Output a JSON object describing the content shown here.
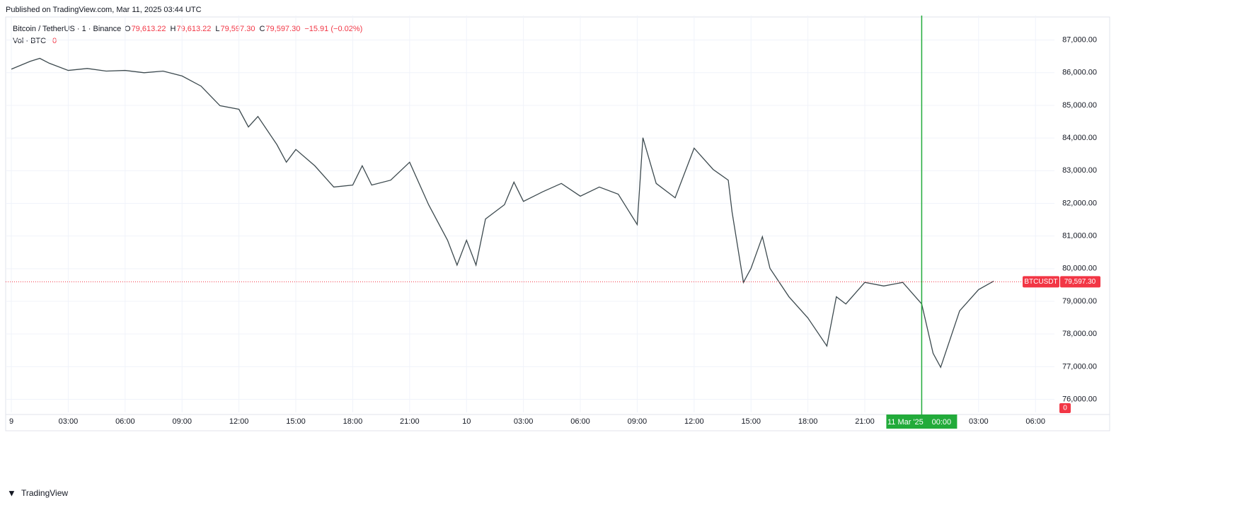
{
  "chart_data": {
    "type": "line",
    "published": "Published on TradingView.com, Mar 11, 2025 03:44 UTC",
    "symbol": "Bitcoin / TetherUS · 1 · Binance",
    "ohlc": [
      "O",
      "79,613.22",
      "H",
      "79,613.22",
      "L",
      "79,597.30",
      "C",
      "79,597.30",
      "−15.91 (−0.02%)"
    ],
    "volume_legend": "Vol · BTC",
    "volume_value": "0",
    "brand": "TradingView",
    "x": [
      0,
      1,
      1.5,
      2,
      3,
      4,
      5,
      6,
      7,
      8,
      9,
      10,
      11,
      12,
      12.5,
      13,
      14,
      14.5,
      15,
      16,
      17,
      18,
      18.5,
      19,
      20,
      21,
      22,
      23,
      23.5,
      24,
      24.5,
      25,
      26,
      26.5,
      27,
      28,
      29,
      30,
      31,
      32,
      33,
      33.3,
      34,
      35,
      36,
      37,
      37.8,
      38,
      38.6,
      39,
      39.6,
      40,
      41,
      42,
      43,
      43.5,
      44,
      45,
      46,
      47,
      48,
      48.6,
      49,
      50,
      51,
      51.8
    ],
    "series": [
      {
        "color": "#3d4a4f",
        "values": [
          86110,
          86350,
          86440,
          86290,
          86070,
          86130,
          86050,
          86070,
          86000,
          86050,
          85900,
          85590,
          84990,
          84880,
          84340,
          84660,
          83800,
          83260,
          83650,
          83150,
          82500,
          82560,
          83150,
          82560,
          82710,
          83260,
          81960,
          80870,
          80110,
          80870,
          80110,
          81520,
          81960,
          82650,
          82060,
          82350,
          82610,
          82220,
          82500,
          82280,
          81350,
          84010,
          82610,
          82170,
          83690,
          83040,
          82710,
          81740,
          79580,
          80010,
          80980,
          80010,
          79140,
          78490,
          77630,
          79140,
          78920,
          79580,
          79470,
          79580,
          78920,
          77410,
          76980,
          78710,
          79360,
          79620
        ]
      }
    ],
    "xlim": [
      -0.3,
      55
    ],
    "ylim": [
      75600,
      87750
    ],
    "xticks": [
      {
        "value": 0,
        "label": "9"
      },
      {
        "value": 3,
        "label": "03:00"
      },
      {
        "value": 6,
        "label": "06:00"
      },
      {
        "value": 9,
        "label": "09:00"
      },
      {
        "value": 12,
        "label": "12:00"
      },
      {
        "value": 15,
        "label": "15:00"
      },
      {
        "value": 18,
        "label": "18:00"
      },
      {
        "value": 21,
        "label": "21:00"
      },
      {
        "value": 24,
        "label": "10"
      },
      {
        "value": 27,
        "label": "03:00"
      },
      {
        "value": 30,
        "label": "06:00"
      },
      {
        "value": 33,
        "label": "09:00"
      },
      {
        "value": 36,
        "label": "12:00"
      },
      {
        "value": 39,
        "label": "15:00"
      },
      {
        "value": 42,
        "label": "18:00"
      },
      {
        "value": 45,
        "label": "21:00"
      },
      {
        "value": 51,
        "label": "03:00"
      },
      {
        "value": 54,
        "label": "06:00"
      }
    ],
    "yticks": [
      {
        "value": 76000,
        "label": "76,000.00"
      },
      {
        "value": 77000,
        "label": "77,000.00"
      },
      {
        "value": 78000,
        "label": "78,000.00"
      },
      {
        "value": 79000,
        "label": "79,000.00"
      },
      {
        "value": 80000,
        "label": "80,000.00"
      },
      {
        "value": 81000,
        "label": "81,000.00"
      },
      {
        "value": 82000,
        "label": "82,000.00"
      },
      {
        "value": 83000,
        "label": "83,000.00"
      },
      {
        "value": 84000,
        "label": "84,000.00"
      },
      {
        "value": 85000,
        "label": "85,000.00"
      },
      {
        "value": 86000,
        "label": "86,000.00"
      },
      {
        "value": 87000,
        "label": "87,000.00"
      }
    ],
    "grid": true,
    "last_price": {
      "value": 79597.3,
      "label": "79,597.30",
      "ticker": "BTCUSDT"
    },
    "crosshair": {
      "value": 48,
      "date": "11 Mar '25",
      "time": "00:00"
    }
  }
}
